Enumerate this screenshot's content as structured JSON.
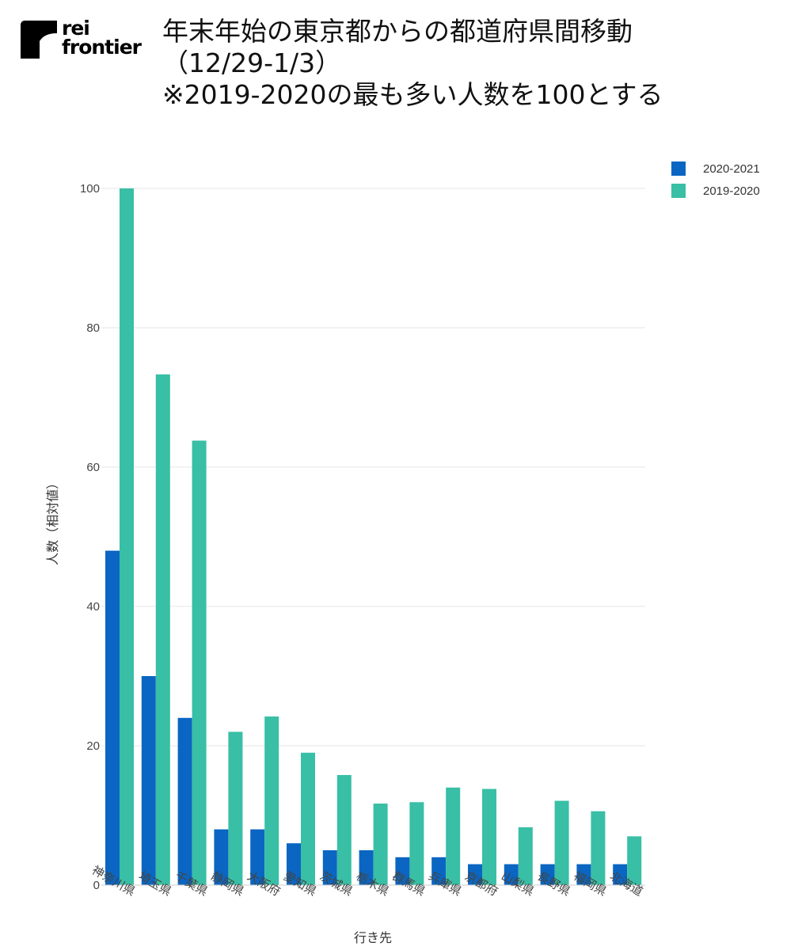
{
  "logo": {
    "line1": "rei",
    "line2": "frontier"
  },
  "title": {
    "line1": "年末年始の東京都からの都道府県間移動",
    "line2": "（12/29-1/3）",
    "line3": "※2019-2020の最も多い人数を100とする"
  },
  "colors": {
    "series1": "#0a66c2",
    "series2": "#38bfa5"
  },
  "chart_data": {
    "type": "bar",
    "xlabel": "行き先",
    "ylabel": "人数（相対値）",
    "ylim": [
      0,
      100
    ],
    "yticks": [
      0,
      20,
      40,
      60,
      80,
      100
    ],
    "grid": true,
    "legend_position": "top-right",
    "categories": [
      "神奈川県",
      "埼玉県",
      "千葉県",
      "静岡県",
      "大阪府",
      "愛知県",
      "茨城県",
      "栃木県",
      "群馬県",
      "兵庫県",
      "京都府",
      "山梨県",
      "長野県",
      "福岡県",
      "北海道"
    ],
    "series": [
      {
        "name": "2020-2021",
        "color": "#0a66c2",
        "values": [
          48,
          30,
          24,
          8,
          8,
          6,
          5,
          5,
          4,
          4,
          3,
          3,
          3,
          3,
          3
        ]
      },
      {
        "name": "2019-2020",
        "color": "#38bfa5",
        "values": [
          100,
          73.3,
          63.8,
          22,
          24.2,
          19,
          15.8,
          11.7,
          11.9,
          14,
          13.8,
          8.3,
          12.1,
          10.6,
          7
        ]
      }
    ]
  }
}
